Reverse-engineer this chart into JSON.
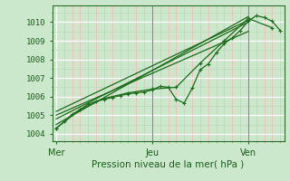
{
  "background_color": "#cce8cc",
  "plot_bg_color": "#cce8cc",
  "grid_major_color": "#ffffff",
  "grid_minor_x_color": "#ffb0b0",
  "grid_minor_y_color": "#b8d8b8",
  "line_color": "#1a6b1a",
  "text_color": "#1a5c1a",
  "border_color": "#2d6b2d",
  "xlabel": "Pression niveau de la mer( hPa )",
  "xtick_labels": [
    "Mer",
    "Jeu",
    "Ven"
  ],
  "xtick_positions": [
    0,
    48,
    96
  ],
  "ytick_min": 1004,
  "ytick_max": 1010,
  "xlim": [
    -2,
    114
  ],
  "ylim": [
    1003.6,
    1010.9
  ],
  "vline_positions": [
    48,
    96
  ],
  "vline_color": "#888888",
  "line1_x": [
    0,
    4,
    8,
    12,
    16,
    20,
    24,
    28,
    32,
    36,
    40,
    44,
    48,
    52,
    56,
    60,
    64,
    68,
    72,
    76,
    80,
    84,
    88,
    92,
    96,
    100,
    104,
    108,
    112
  ],
  "line1_y": [
    1004.3,
    1004.65,
    1005.05,
    1005.3,
    1005.6,
    1005.75,
    1005.85,
    1005.95,
    1006.05,
    1006.15,
    1006.2,
    1006.25,
    1006.35,
    1006.55,
    1006.5,
    1005.85,
    1005.65,
    1006.45,
    1007.45,
    1007.75,
    1008.35,
    1008.85,
    1009.15,
    1009.55,
    1010.05,
    1010.35,
    1010.25,
    1010.05,
    1009.55
  ],
  "line2_x": [
    0,
    12,
    24,
    36,
    48,
    60,
    72,
    84,
    96,
    108
  ],
  "line2_y": [
    1004.3,
    1005.3,
    1005.9,
    1006.2,
    1006.4,
    1006.5,
    1007.8,
    1009.0,
    1010.2,
    1009.7
  ],
  "line3_x": [
    0,
    96
  ],
  "line3_y": [
    1004.5,
    1010.3
  ],
  "line4_x": [
    0,
    96
  ],
  "line4_y": [
    1005.0,
    1009.5
  ],
  "line5_x": [
    0,
    96
  ],
  "line5_y": [
    1004.8,
    1010.0
  ],
  "line6_x": [
    0,
    96
  ],
  "line6_y": [
    1005.2,
    1010.1
  ]
}
